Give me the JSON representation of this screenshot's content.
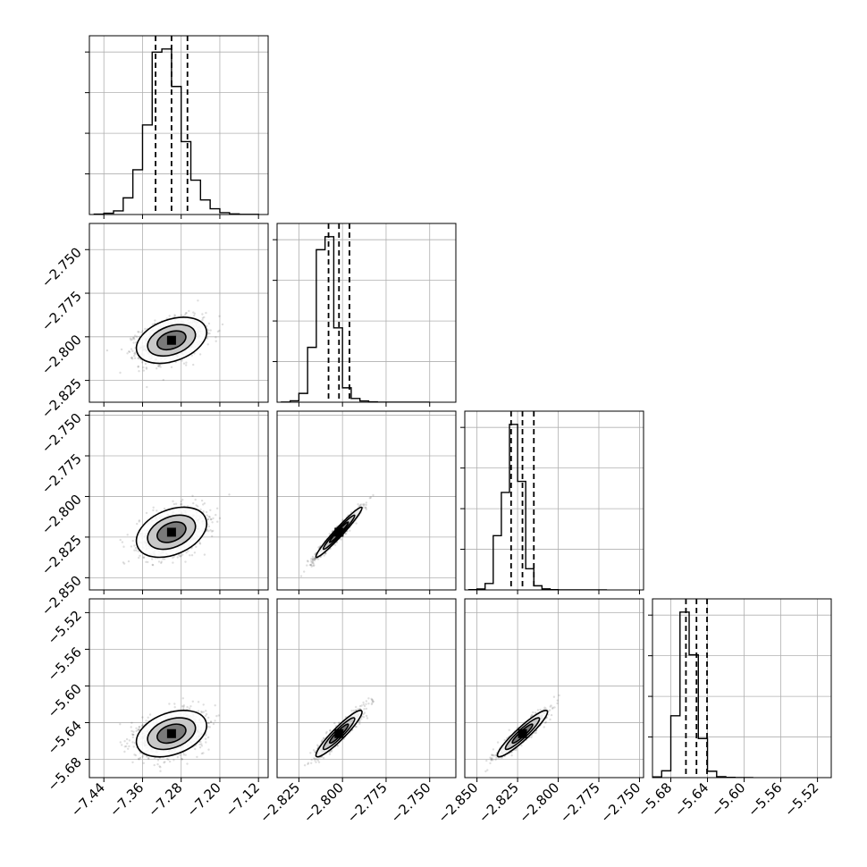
{
  "chart_data": {
    "type": "scatter",
    "subtype": "corner-plot",
    "title": "",
    "parameters": 4,
    "axis_labels": [
      "",
      "",
      "",
      ""
    ],
    "ranges": [
      [
        -7.47,
        -7.1
      ],
      [
        -2.8375,
        -2.735
      ],
      [
        -2.8575,
        -2.7475
      ],
      [
        -5.7,
        -5.505
      ]
    ],
    "ticks": [
      [
        -7.44,
        -7.36,
        -7.28,
        -7.2,
        -7.12
      ],
      [
        -2.825,
        -2.8,
        -2.775,
        -2.75
      ],
      [
        -2.85,
        -2.825,
        -2.8,
        -2.775,
        -2.75
      ],
      [
        -5.68,
        -5.64,
        -5.6,
        -5.56,
        -5.52
      ]
    ],
    "tick_labels": [
      [
        "−7.44",
        "−7.36",
        "−7.28",
        "−7.20",
        "−7.12"
      ],
      [
        "−2.825",
        "−2.800",
        "−2.775",
        "−2.750"
      ],
      [
        "−2.850",
        "−2.825",
        "−2.800",
        "−2.775",
        "−2.750"
      ],
      [
        "−5.68",
        "−5.64",
        "−5.60",
        "−5.56",
        "−5.52"
      ]
    ],
    "means": [
      -7.3,
      -2.802,
      -2.822,
      -5.652
    ],
    "stds": [
      0.033,
      0.006,
      0.007,
      0.0115
    ],
    "correlations": [
      [
        1.0,
        0.35,
        0.35,
        0.35
      ],
      [
        0.35,
        1.0,
        0.97,
        0.93
      ],
      [
        0.35,
        0.97,
        1.0,
        0.93
      ],
      [
        0.35,
        0.93,
        0.93,
        1.0
      ]
    ],
    "quantiles_marked": [
      0.16,
      0.5,
      0.84
    ],
    "marginals": [
      {
        "bins": [
          -7.46,
          -7.44,
          -7.42,
          -7.4,
          -7.38,
          -7.36,
          -7.34,
          -7.32,
          -7.3,
          -7.28,
          -7.26,
          -7.24,
          -7.22,
          -7.2,
          -7.18,
          -7.16,
          -7.14,
          -7.12
        ],
        "counts": [
          4,
          12,
          35,
          160,
          430,
          860,
          1560,
          1590,
          1230,
          700,
          330,
          140,
          55,
          18,
          6,
          2,
          1
        ]
      },
      {
        "bins": [
          -2.835,
          -2.83,
          -2.825,
          -2.82,
          -2.815,
          -2.81,
          -2.805,
          -2.8,
          -2.795,
          -2.79,
          -2.785,
          -2.78,
          -2.775,
          -2.77,
          -2.765,
          -2.76,
          -2.755,
          -2.75
        ],
        "counts": [
          2,
          15,
          95,
          590,
          1640,
          1780,
          800,
          155,
          40,
          14,
          4,
          1,
          1,
          0,
          0,
          0,
          0
        ]
      },
      {
        "bins": [
          -2.855,
          -2.85,
          -2.845,
          -2.84,
          -2.835,
          -2.83,
          -2.825,
          -2.82,
          -2.815,
          -2.81,
          -2.805,
          -2.8,
          -2.795,
          -2.79,
          -2.785,
          -2.78,
          -2.775,
          -2.77
        ],
        "counts": [
          3,
          10,
          70,
          590,
          1060,
          1800,
          1180,
          230,
          45,
          12,
          3,
          1,
          0,
          0,
          0,
          0,
          0
        ]
      },
      {
        "bins": [
          -5.7,
          -5.69,
          -5.68,
          -5.67,
          -5.66,
          -5.65,
          -5.64,
          -5.63,
          -5.62,
          -5.61,
          -5.6,
          -5.59
        ],
        "counts": [
          8,
          75,
          680,
          1820,
          1350,
          430,
          70,
          10,
          3,
          1,
          0
        ]
      }
    ],
    "grid": true,
    "legend": "none"
  }
}
